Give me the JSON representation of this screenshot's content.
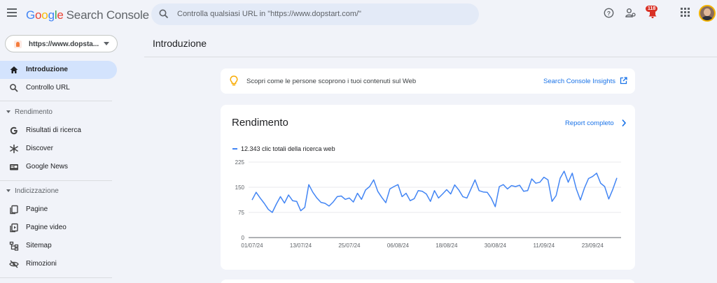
{
  "app": {
    "logo_letters": [
      "G",
      "o",
      "o",
      "g",
      "l",
      "e"
    ],
    "product": "Search Console"
  },
  "search": {
    "placeholder": "Controlla qualsiasi URL in \"https://www.dopstart.com/\""
  },
  "toolbar": {
    "notifications_count": "118"
  },
  "property": {
    "url": "https://www.dopsta..."
  },
  "sidebar": {
    "items": [
      {
        "label": "Introduzione",
        "icon": "home-icon"
      },
      {
        "label": "Controllo URL",
        "icon": "search-icon"
      }
    ],
    "sections": [
      {
        "header": "Rendimento",
        "items": [
          {
            "label": "Risultati di ricerca",
            "icon": "google-g-icon"
          },
          {
            "label": "Discover",
            "icon": "asterisk-icon"
          },
          {
            "label": "Google News",
            "icon": "news-icon"
          }
        ]
      },
      {
        "header": "Indicizzazione",
        "items": [
          {
            "label": "Pagine",
            "icon": "pages-icon"
          },
          {
            "label": "Pagine video",
            "icon": "video-pages-icon"
          },
          {
            "label": "Sitemap",
            "icon": "sitemap-icon"
          },
          {
            "label": "Rimozioni",
            "icon": "eye-off-icon"
          }
        ]
      }
    ]
  },
  "main": {
    "title": "Introduzione",
    "insight": {
      "text": "Scopri come le persone scoprono i tuoi contenuti sul Web",
      "link": "Search Console Insights"
    },
    "performance": {
      "title": "Rendimento",
      "report_link": "Report completo",
      "legend": "12.343 clic totali della ricerca web"
    }
  },
  "colors": {
    "accent": "#1a73e8",
    "series": "#4285f4",
    "active_nav": "#d3e3fd"
  },
  "chart_data": {
    "type": "line",
    "title": "",
    "xlabel": "",
    "ylabel": "",
    "ylim": [
      0,
      225
    ],
    "yticks": [
      0,
      75,
      150,
      225
    ],
    "xticks": [
      "01/07/24",
      "13/07/24",
      "25/07/24",
      "06/08/24",
      "18/08/24",
      "30/08/24",
      "11/09/24",
      "23/09/24"
    ],
    "grid": true,
    "series": [
      {
        "name": "12.343 clic totali della ricerca web",
        "x_start": "01/07/24",
        "values": [
          112,
          135,
          118,
          102,
          84,
          75,
          100,
          122,
          103,
          127,
          110,
          108,
          80,
          90,
          158,
          135,
          118,
          105,
          102,
          94,
          106,
          122,
          124,
          114,
          118,
          106,
          132,
          114,
          142,
          152,
          172,
          138,
          120,
          104,
          145,
          152,
          158,
          122,
          132,
          110,
          116,
          140,
          138,
          130,
          108,
          140,
          118,
          130,
          143,
          130,
          157,
          142,
          122,
          118,
          145,
          172,
          140,
          136,
          135,
          118,
          92,
          152,
          158,
          145,
          155,
          152,
          156,
          138,
          140,
          175,
          162,
          165,
          180,
          172,
          108,
          125,
          177,
          198,
          165,
          192,
          145,
          112,
          148,
          176,
          182,
          192,
          162,
          152,
          115,
          144,
          178
        ]
      }
    ]
  }
}
